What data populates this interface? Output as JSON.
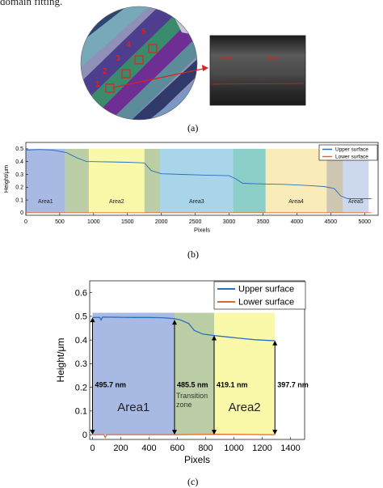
{
  "top_caption": "domain fitting.",
  "panel_a": {
    "label": "(a)",
    "wafer_numbers": [
      "1",
      "2",
      "3",
      "4",
      "5"
    ],
    "zoom_labels": [
      "Area1",
      "Area2"
    ],
    "colors": {
      "marker": "#e0201c",
      "arrow": "#d6231e"
    }
  },
  "panel_b": {
    "label": "(b)",
    "legend": [
      "Upper surface",
      "Lower surface"
    ],
    "xlabel": "Pixels",
    "ylabel": "Height/μm",
    "region_labels": [
      "Area1",
      "Area2",
      "Area3",
      "Area4",
      "Area5"
    ],
    "x_ticks": [
      "0",
      "500",
      "1000",
      "1500",
      "2000",
      "2500",
      "3000",
      "3500",
      "4000",
      "4500",
      "5000"
    ],
    "y_ticks": [
      "0",
      "0.1",
      "0.2",
      "0.3",
      "0.4",
      "0.5"
    ]
  },
  "panel_c": {
    "label": "(c)",
    "legend": [
      "Upper surface",
      "Lower surface"
    ],
    "xlabel": "Pixels",
    "ylabel": "Height/μm",
    "region_labels": [
      "Area1",
      "Transition zone",
      "Area2"
    ],
    "annotations": [
      "495.7 nm",
      "485.5 nm",
      "419.1 nm",
      "397.7 nm"
    ],
    "x_ticks": [
      "0",
      "200",
      "400",
      "600",
      "800",
      "1000",
      "1200",
      "1400"
    ],
    "y_ticks": [
      "0",
      "0.1",
      "0.2",
      "0.3",
      "0.4",
      "0.5",
      "0.6"
    ]
  },
  "chart_data": [
    {
      "type": "line",
      "panel": "b",
      "xlabel": "Pixels",
      "ylabel": "Height/μm",
      "xlim": [
        0,
        5200
      ],
      "ylim": [
        -0.02,
        0.55
      ],
      "regions": [
        {
          "label": "Area1",
          "x": [
            0,
            580
          ],
          "color": "#9fb3e0"
        },
        {
          "label": "",
          "x": [
            580,
            930
          ],
          "color": "#b5c99c"
        },
        {
          "label": "Area2",
          "x": [
            930,
            1750
          ],
          "color": "#f8f8a0"
        },
        {
          "label": "",
          "x": [
            1750,
            1980
          ],
          "color": "#b5c99c"
        },
        {
          "label": "Area3",
          "x": [
            1980,
            3060
          ],
          "color": "#a0d0e8"
        },
        {
          "label": "",
          "x": [
            3060,
            3540
          ],
          "color": "#7fc9c2"
        },
        {
          "label": "Area4",
          "x": [
            3540,
            4440
          ],
          "color": "#f8eab0"
        },
        {
          "label": "",
          "x": [
            4440,
            4680
          ],
          "color": "#c8c0a8"
        },
        {
          "label": "Area5",
          "x": [
            4680,
            5060
          ],
          "color": "#c7d4ec"
        }
      ],
      "series": [
        {
          "name": "Upper surface",
          "color": "#2b6fbf",
          "x": [
            0,
            200,
            400,
            600,
            750,
            900,
            1000,
            1200,
            1500,
            1750,
            1850,
            2000,
            2300,
            2600,
            3000,
            3100,
            3200,
            3500,
            3800,
            4100,
            4400,
            4550,
            4650,
            4750,
            5000,
            5100
          ],
          "y": [
            0.49,
            0.495,
            0.49,
            0.47,
            0.43,
            0.4,
            0.4,
            0.398,
            0.395,
            0.39,
            0.33,
            0.305,
            0.3,
            0.295,
            0.29,
            0.265,
            0.23,
            0.225,
            0.222,
            0.215,
            0.205,
            0.19,
            0.13,
            0.11,
            0.11,
            0.11
          ]
        },
        {
          "name": "Lower surface",
          "color": "#e06a2c",
          "x": [
            0,
            1000,
            2000,
            3000,
            4000,
            5100
          ],
          "y": [
            0.0,
            0.0,
            0.0,
            0.0,
            0.0,
            0.0
          ]
        }
      ]
    },
    {
      "type": "line",
      "panel": "c",
      "xlabel": "Pixels",
      "ylabel": "Height/μm",
      "xlim": [
        -20,
        1500
      ],
      "ylim": [
        -0.02,
        0.65
      ],
      "regions": [
        {
          "label": "Area1",
          "x": [
            0,
            580
          ],
          "color": "#9fb3e0"
        },
        {
          "label": "Transition zone",
          "x": [
            580,
            860
          ],
          "color": "#b5c99c"
        },
        {
          "label": "Area2",
          "x": [
            860,
            1290
          ],
          "color": "#f8f8a0"
        }
      ],
      "series": [
        {
          "name": "Upper surface",
          "color": "#2b6fbf",
          "x": [
            0,
            50,
            60,
            70,
            100,
            200,
            300,
            400,
            500,
            580,
            620,
            680,
            720,
            780,
            860,
            950,
            1050,
            1150,
            1250,
            1290
          ],
          "y": [
            0.495,
            0.496,
            0.485,
            0.497,
            0.497,
            0.496,
            0.495,
            0.495,
            0.494,
            0.49,
            0.485,
            0.47,
            0.44,
            0.425,
            0.419,
            0.413,
            0.407,
            0.401,
            0.398,
            0.397
          ]
        },
        {
          "name": "Lower surface",
          "color": "#e06a2c",
          "x": [
            0,
            80,
            90,
            100,
            300,
            600,
            900,
            1290
          ],
          "y": [
            0.0,
            0.0,
            -0.012,
            0.0,
            0.0,
            0.0,
            0.002,
            0.0
          ]
        }
      ],
      "annotations": [
        {
          "text": "495.7 nm",
          "x": 0,
          "y": 0.4957
        },
        {
          "text": "485.5 nm",
          "x": 580,
          "y": 0.4855
        },
        {
          "text": "419.1 nm",
          "x": 860,
          "y": 0.4191
        },
        {
          "text": "397.7 nm",
          "x": 1290,
          "y": 0.3977
        }
      ]
    }
  ]
}
